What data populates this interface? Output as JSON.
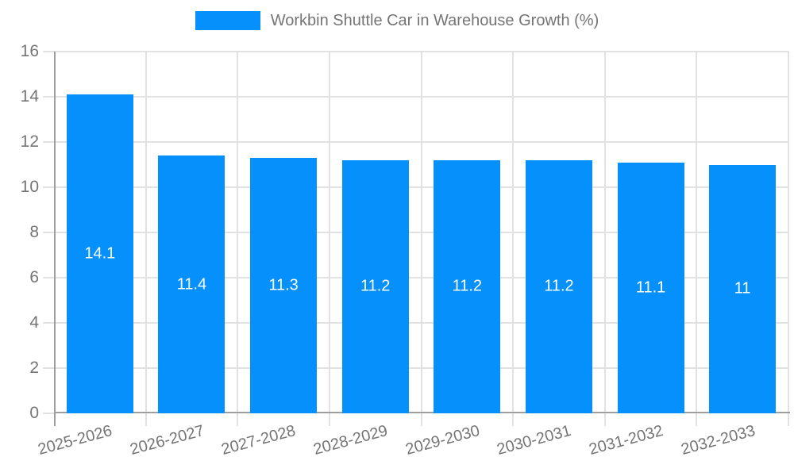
{
  "chart_data": {
    "type": "bar",
    "title": "Workbin Shuttle Car in Warehouse Growth (%)",
    "categories": [
      "2025-2026",
      "2026-2027",
      "2027-2028",
      "2028-2029",
      "2029-2030",
      "2030-2031",
      "2031-2032",
      "2032-2033"
    ],
    "values": [
      14.1,
      11.4,
      11.3,
      11.2,
      11.2,
      11.2,
      11.1,
      11
    ],
    "value_labels": [
      "14.1",
      "11.4",
      "11.3",
      "11.2",
      "11.2",
      "11.2",
      "11.1",
      "11"
    ],
    "xlabel": "",
    "ylabel": "",
    "ylim": [
      0,
      16
    ],
    "yticks": [
      0,
      2,
      4,
      6,
      8,
      10,
      12,
      14,
      16
    ],
    "grid": true,
    "legend_position": "top-center",
    "colors": {
      "bar": "#0590fb",
      "grid": "#e2e2e2",
      "axis": "#9e9e9e",
      "text": "#757575",
      "value_label": "#ffffff"
    }
  }
}
